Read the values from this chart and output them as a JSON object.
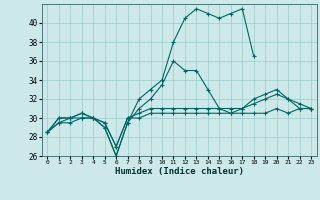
{
  "xlabel": "Humidex (Indice chaleur)",
  "bg_color": "#cce8e8",
  "line_color": "#006666",
  "grid_color": "#99cccc",
  "xlim": [
    -0.5,
    23.5
  ],
  "ylim": [
    26,
    42
  ],
  "yticks": [
    26,
    28,
    30,
    32,
    34,
    36,
    38,
    40
  ],
  "xticks": [
    0,
    1,
    2,
    3,
    4,
    5,
    6,
    7,
    8,
    9,
    10,
    11,
    12,
    13,
    14,
    15,
    16,
    17,
    18,
    19,
    20,
    21,
    22,
    23
  ],
  "series": [
    [
      28.5,
      30,
      30,
      30.5,
      30,
      29,
      26,
      29.5,
      32,
      33,
      34,
      38,
      40.5,
      41.5,
      41,
      40.5,
      41,
      41.5,
      36.5,
      null,
      null,
      null,
      null,
      null
    ],
    [
      28.5,
      30,
      30,
      30.5,
      30,
      29,
      26,
      29.5,
      31,
      32,
      33.5,
      36,
      35,
      35,
      33,
      31,
      30.5,
      31,
      32,
      32.5,
      33,
      32,
      31,
      31
    ],
    [
      28.5,
      29.5,
      30,
      30,
      30,
      29.5,
      27,
      30,
      30.5,
      31,
      31,
      31,
      31,
      31,
      31,
      31,
      31,
      31,
      31.5,
      32,
      32.5,
      32,
      31.5,
      31
    ],
    [
      28.5,
      29.5,
      29.5,
      30,
      30,
      29.5,
      27,
      30,
      30,
      30.5,
      30.5,
      30.5,
      30.5,
      30.5,
      30.5,
      30.5,
      30.5,
      30.5,
      30.5,
      30.5,
      31,
      30.5,
      31,
      31
    ]
  ]
}
